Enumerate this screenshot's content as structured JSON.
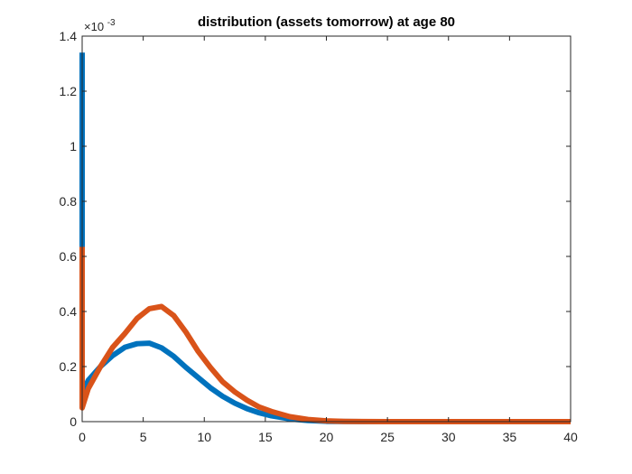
{
  "chart_data": {
    "type": "line",
    "title": "distribution (assets tomorrow) at age 80",
    "xlabel": "",
    "ylabel": "",
    "xlim": [
      0,
      40
    ],
    "ylim": [
      0,
      0.0014
    ],
    "xticks": [
      0,
      5,
      10,
      15,
      20,
      25,
      30,
      35,
      40
    ],
    "yticks": [
      0,
      0.0002,
      0.0004,
      0.0006,
      0.0008,
      0.001,
      0.0012,
      0.0014
    ],
    "ytick_labels": [
      "0",
      "0.2",
      "0.4",
      "0.6",
      "0.8",
      "1",
      "1.2",
      "1.4"
    ],
    "y_exponent_base": "×10",
    "y_exponent_power": "-3",
    "grid": false,
    "box": true,
    "series": [
      {
        "color": "#0072BD",
        "x": [
          0,
          0,
          0.5,
          1.5,
          2.5,
          3.5,
          4.5,
          5.5,
          6.5,
          7.5,
          8.5,
          9.5,
          10.5,
          11.5,
          12.5,
          13.5,
          14.5,
          15.5,
          17,
          18.5,
          20,
          21.5,
          23,
          25,
          30,
          35,
          40
        ],
        "y": [
          0.00134,
          0.0001,
          0.00015,
          0.0002,
          0.00024,
          0.00027,
          0.000283,
          0.000285,
          0.000268,
          0.000237,
          0.000197,
          0.00016,
          0.000123,
          9.2e-05,
          6.7e-05,
          4.7e-05,
          3.2e-05,
          2.1e-05,
          1e-05,
          4e-06,
          1e-06,
          4e-07,
          1e-07,
          0,
          0,
          0,
          0
        ]
      },
      {
        "color": "#D95319",
        "x": [
          0,
          0,
          0.5,
          1.5,
          2.5,
          3.5,
          4.5,
          5.5,
          6.5,
          7.5,
          8.5,
          9.5,
          10.5,
          11.5,
          12.5,
          13.5,
          14.5,
          15.5,
          17,
          18.5,
          20,
          21.5,
          23,
          25,
          30,
          35,
          40
        ],
        "y": [
          0.000635,
          5e-05,
          0.00012,
          0.0002,
          0.00027,
          0.00032,
          0.000375,
          0.00041,
          0.000418,
          0.000385,
          0.000325,
          0.000255,
          0.000197,
          0.000145,
          0.000108,
          7.8e-05,
          5.3e-05,
          3.7e-05,
          1.8e-05,
          8e-06,
          3e-06,
          1e-06,
          3e-07,
          0,
          0,
          0,
          0
        ]
      }
    ]
  }
}
